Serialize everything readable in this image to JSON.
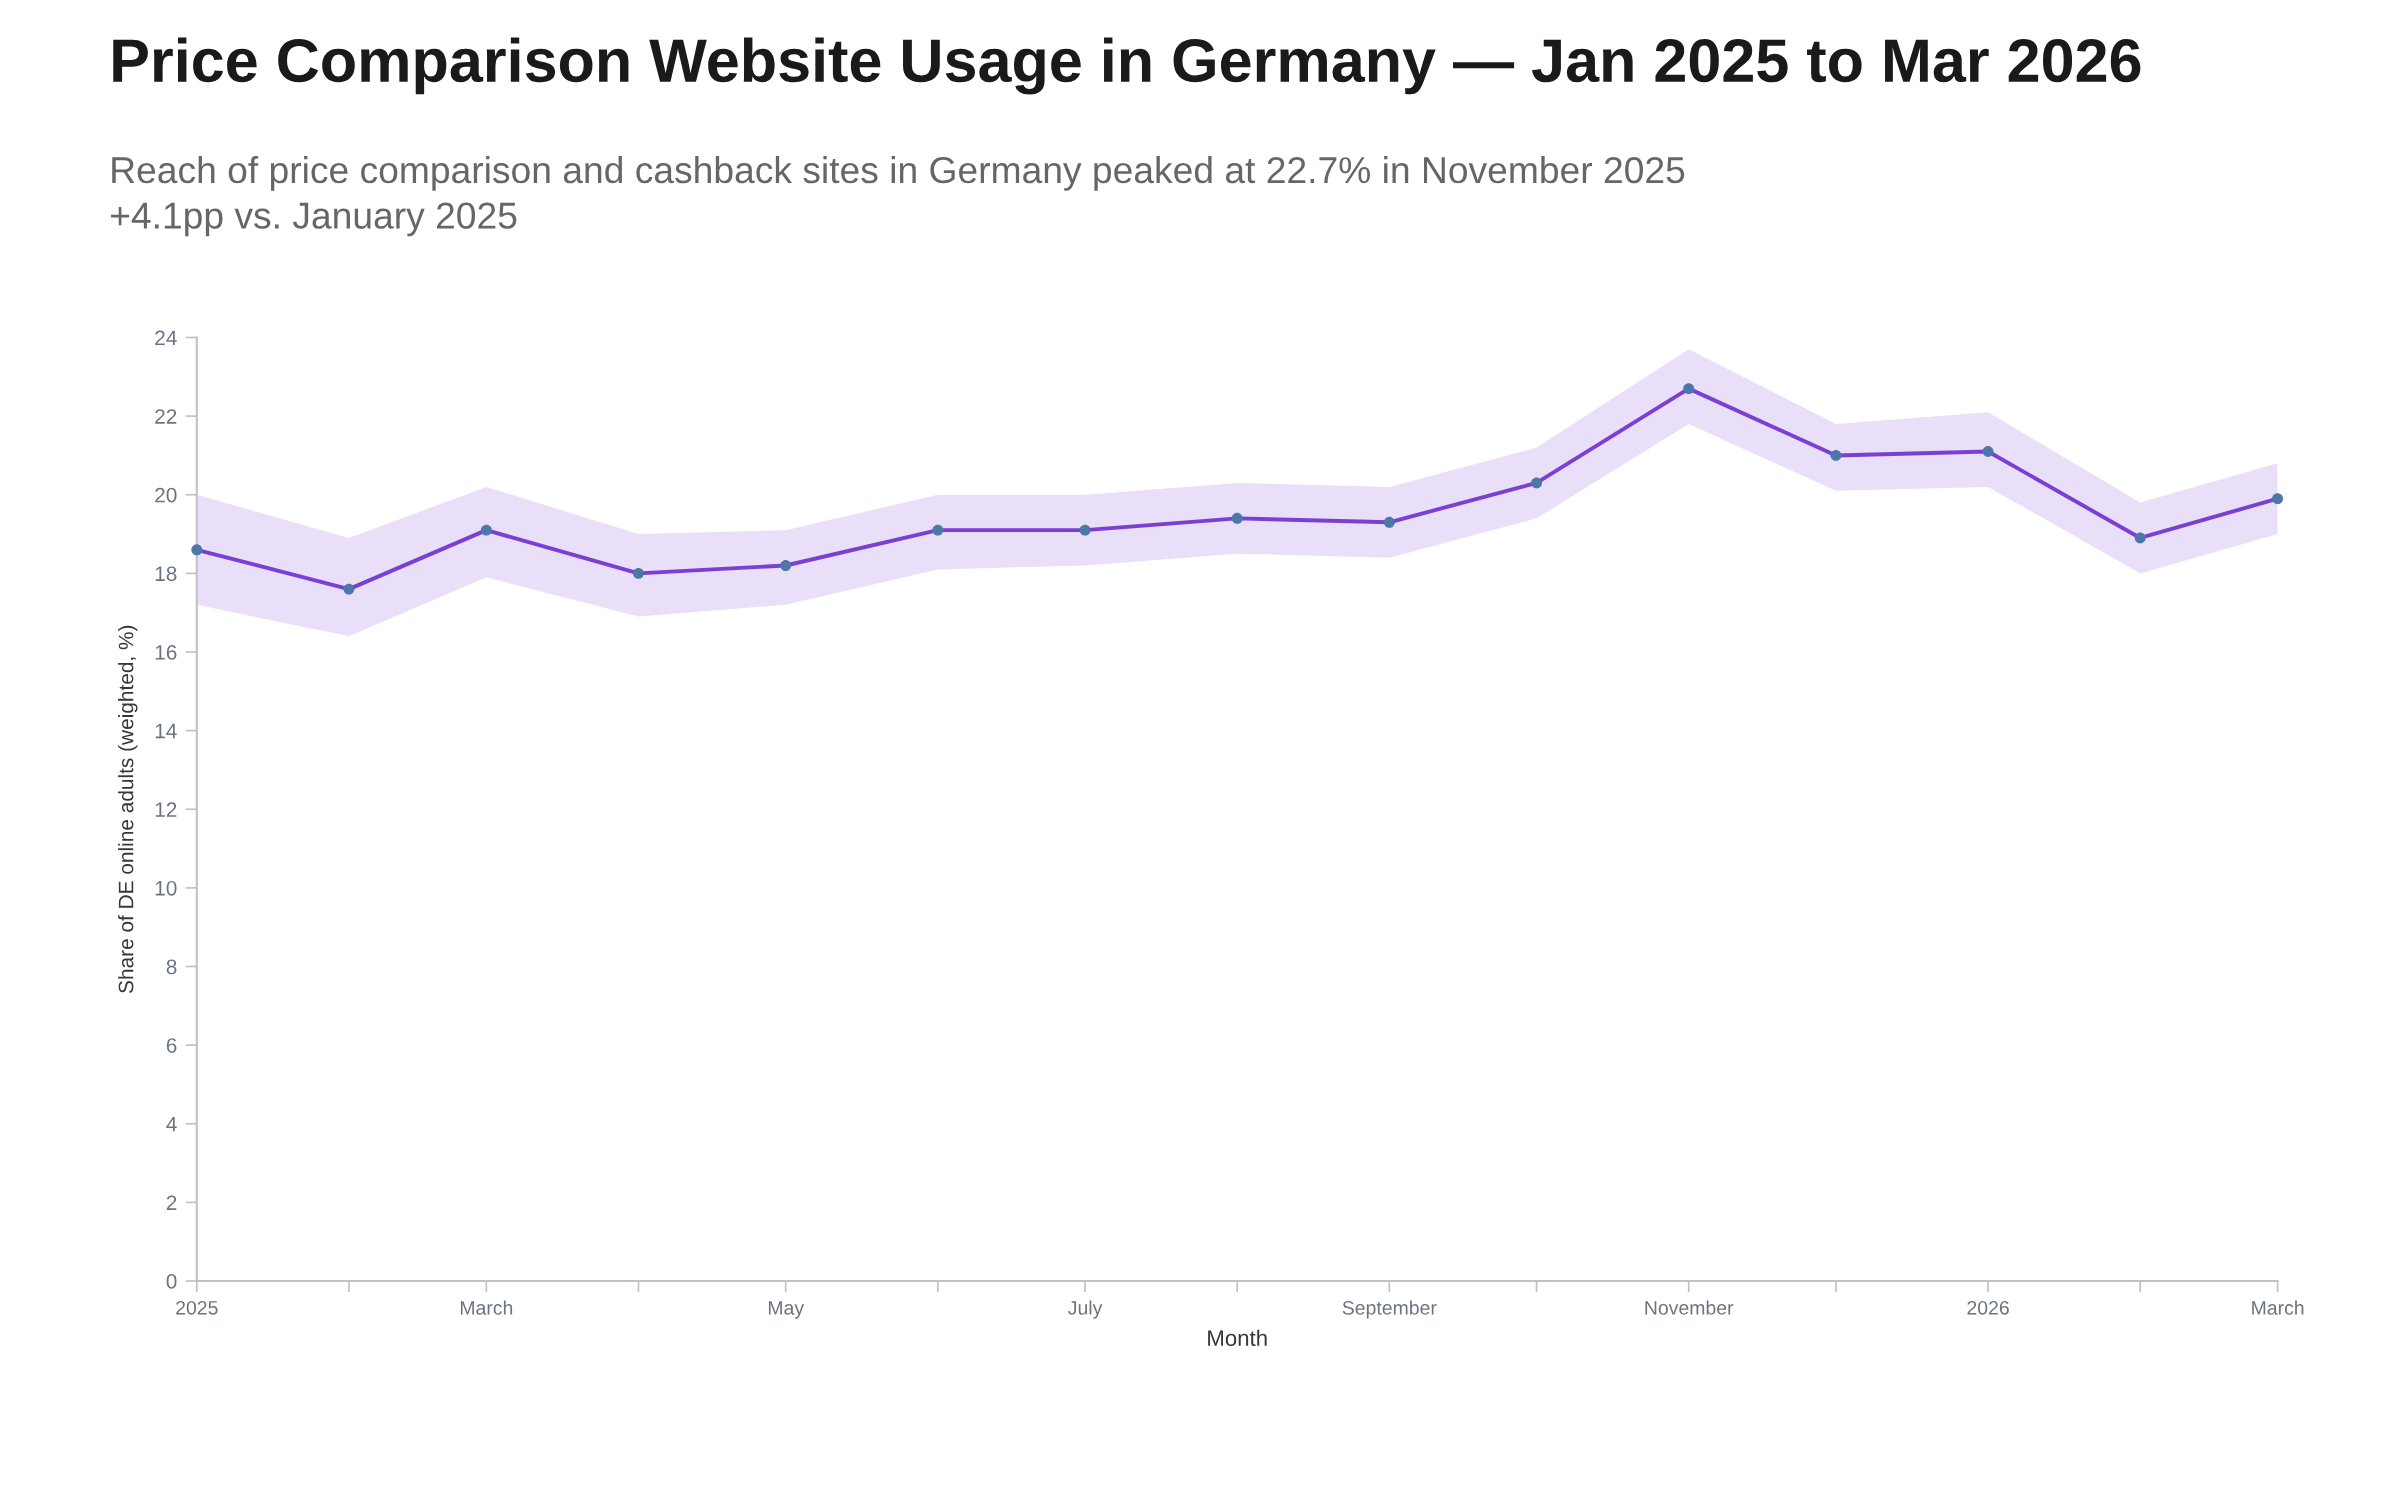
{
  "chart_data": {
    "type": "line",
    "title": "Price Comparison Website Usage in Germany — Jan 2025 to Mar 2026",
    "subtitle": "Reach of price comparison and cashback sites in Germany peaked at 22.7% in November 2025\n+4.1pp vs. January 2025",
    "xlabel": "Month",
    "ylabel": "Share of DE online adults (weighted, %)",
    "x": [
      "2025-01",
      "2025-02",
      "2025-03",
      "2025-04",
      "2025-05",
      "2025-06",
      "2025-07",
      "2025-08",
      "2025-09",
      "2025-10",
      "2025-11",
      "2025-12",
      "2026-01",
      "2026-02",
      "2026-03"
    ],
    "series": [
      {
        "color": "#7b3fd4",
        "colors": [
          "#4c78a8",
          "#4c78a8",
          "#4c78a8",
          "#4c78a8",
          "#4c78a8",
          "#4c78a8",
          "#4c78a8",
          "#4c78a8",
          "#4c78a8",
          "#4c78a8",
          "#4c78a8",
          "#4c78a8",
          "#4c78a8",
          "#4c78a8",
          "#4c78a8"
        ],
        "values": [
          18.6,
          17.6,
          19.1,
          18.0,
          18.2,
          19.1,
          19.1,
          19.4,
          19.3,
          20.3,
          22.7,
          21.0,
          21.1,
          18.9,
          19.9
        ],
        "lower": [
          17.2,
          16.4,
          17.9,
          16.9,
          17.2,
          18.1,
          18.2,
          18.5,
          18.4,
          19.4,
          21.8,
          20.1,
          20.2,
          18.0,
          19.0
        ],
        "upper": [
          20.0,
          18.9,
          20.2,
          19.0,
          19.1,
          20.0,
          20.0,
          20.3,
          20.2,
          21.2,
          23.7,
          21.8,
          22.1,
          19.8,
          20.8
        ]
      }
    ],
    "xlim": [
      "2025-01",
      "2026-03"
    ],
    "xticks": [
      {
        "value": "2025-01",
        "label": "2025"
      },
      {
        "value": "2025-02",
        "label": null
      },
      {
        "value": "2025-03",
        "label": "March"
      },
      {
        "value": "2025-04",
        "label": null
      },
      {
        "value": "2025-05",
        "label": "May"
      },
      {
        "value": "2025-06",
        "label": null
      },
      {
        "value": "2025-07",
        "label": "July"
      },
      {
        "value": "2025-08",
        "label": null
      },
      {
        "value": "2025-09",
        "label": "September"
      },
      {
        "value": "2025-10",
        "label": null
      },
      {
        "value": "2025-11",
        "label": "November"
      },
      {
        "value": "2025-12",
        "label": null
      },
      {
        "value": "2026-01",
        "label": "2026"
      },
      {
        "value": "2026-02",
        "label": null
      },
      {
        "value": "2026-03",
        "label": "March"
      }
    ],
    "ylim": [
      0,
      24
    ],
    "yticks": [
      0,
      2,
      4,
      6,
      8,
      10,
      12,
      14,
      16,
      18,
      20,
      22,
      24
    ],
    "grid": false,
    "marker": "circle",
    "line_style": "solid"
  }
}
